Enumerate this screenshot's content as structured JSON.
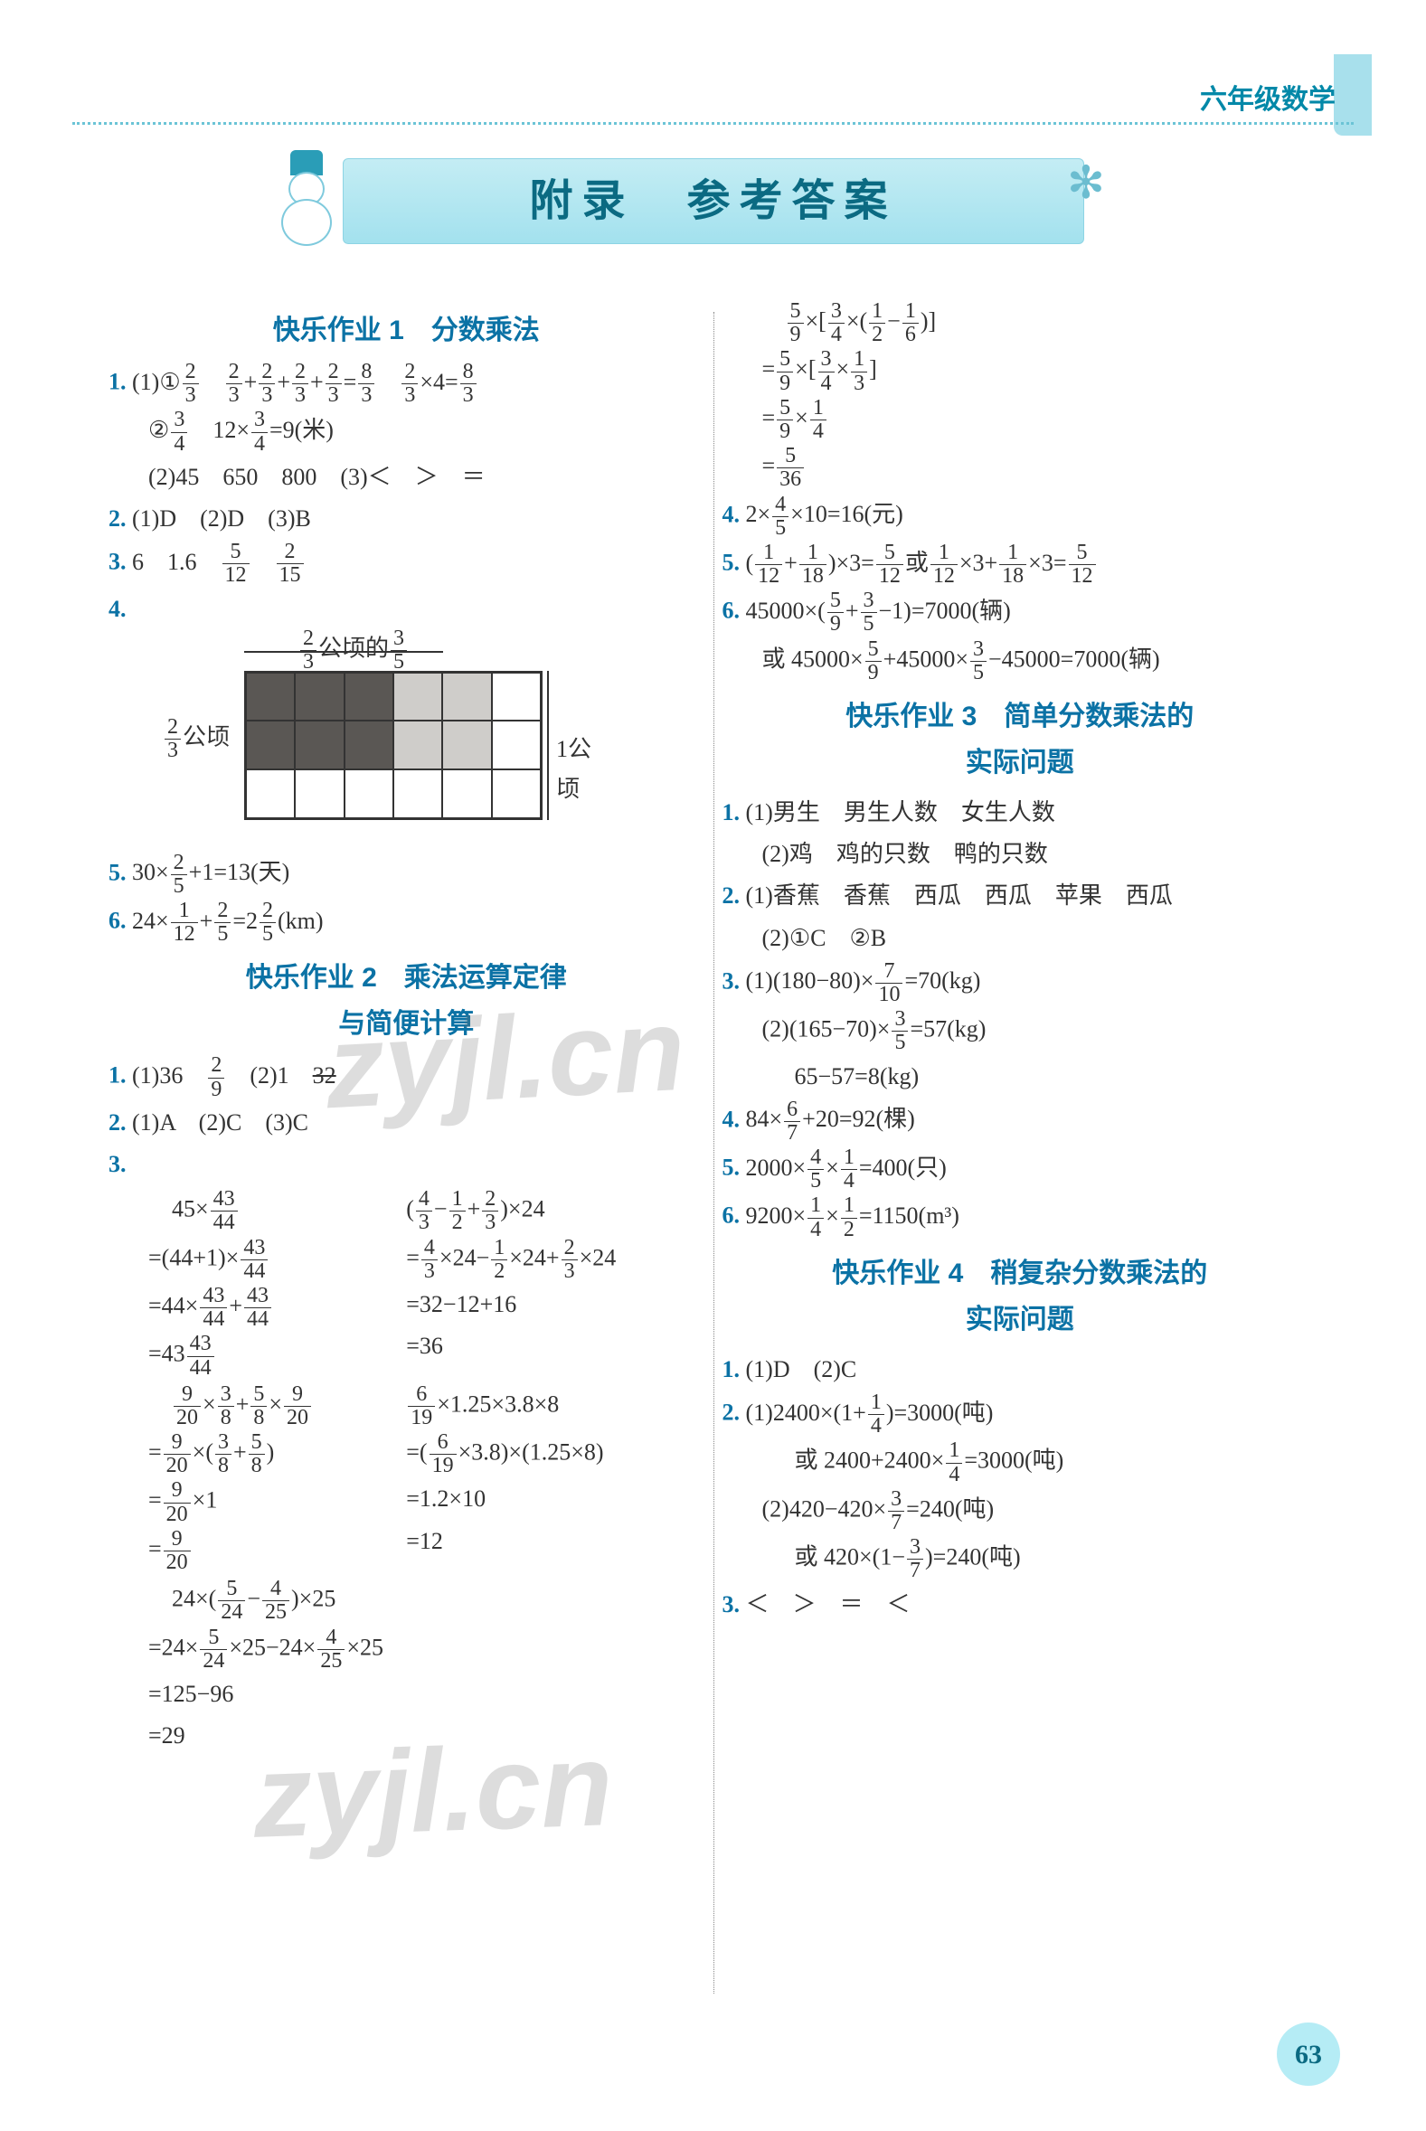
{
  "header": {
    "grade_subject": "六年级数学"
  },
  "banner": {
    "title": "附录　参考答案"
  },
  "watermark": "zyjl.cn",
  "page_number": "63",
  "diagram": {
    "left_label_html": "<span class='frac'><span class='n'>2</span><span class='d'>3</span></span>公顷",
    "top_label_html": "<span class='frac'><span class='n'>2</span><span class='d'>3</span></span>公顷的<span class='frac'><span class='n'>3</span><span class='d'>5</span></span>",
    "right_label": "1公顷",
    "rows": 3,
    "cols": 6,
    "colors": {
      "dark": "#5a5754",
      "light": "#cfcdca",
      "white": "#ffffff",
      "border": "#333333"
    },
    "cells": [
      [
        "dark",
        "dark",
        "dark",
        "light",
        "light",
        "white"
      ],
      [
        "dark",
        "dark",
        "dark",
        "light",
        "light",
        "white"
      ],
      [
        "white",
        "white",
        "white",
        "white",
        "white",
        "white"
      ]
    ]
  },
  "sections": {
    "s1": {
      "title": "快乐作业 1　分数乘法"
    },
    "s2": {
      "title": "快乐作业 2　乘法运算定律与简便计算",
      "title_l1": "快乐作业 2　乘法运算定律",
      "title_l2": "与简便计算"
    },
    "s3": {
      "title_l1": "快乐作业 3　简单分数乘法的",
      "title_l2": "实际问题"
    },
    "s4": {
      "title_l1": "快乐作业 4　稍复杂分数乘法的",
      "title_l2": "实际问题"
    }
  },
  "left": {
    "q1_1a_html": "(1)①<span class='frac'><span class='n'>2</span><span class='d'>3</span></span>　<span class='frac'><span class='n'>2</span><span class='d'>3</span></span>+<span class='frac'><span class='n'>2</span><span class='d'>3</span></span>+<span class='frac'><span class='n'>2</span><span class='d'>3</span></span>+<span class='frac'><span class='n'>2</span><span class='d'>3</span></span>=<span class='frac'><span class='n'>8</span><span class='d'>3</span></span>　<span class='frac'><span class='n'>2</span><span class='d'>3</span></span>×4=<span class='frac'><span class='n'>8</span><span class='d'>3</span></span>",
    "q1_1b_html": "②<span class='frac'><span class='n'>3</span><span class='d'>4</span></span>　12×<span class='frac'><span class='n'>3</span><span class='d'>4</span></span>=9(米)",
    "q1_2": "(2)45　650　800　(3)＜　＞　＝",
    "q2": "(1)D　(2)D　(3)B",
    "q3_html": "6　1.6　<span class='frac'><span class='n'>5</span><span class='d'>12</span></span>　<span class='frac'><span class='n'>2</span><span class='d'>15</span></span>",
    "q5_html": "30×<span class='frac'><span class='n'>2</span><span class='d'>5</span></span>+1=13(天)",
    "q6_html": "24×<span class='frac'><span class='n'>1</span><span class='d'>12</span></span>+<span class='frac'><span class='n'>2</span><span class='d'>5</span></span>=2<span class='frac'><span class='n'>2</span><span class='d'>5</span></span>(km)",
    "s2_q1_html": "(1)36　<span class='frac'><span class='n'>2</span><span class='d'>9</span></span>　(2)1　<span style='text-decoration:line-through'>32</span>",
    "s2_q2": "(1)A　(2)C　(3)C",
    "s2_q3a_1_html": "　45×<span class='frac'><span class='n'>43</span><span class='d'>44</span></span>",
    "s2_q3a_2_html": "=(44+1)×<span class='frac'><span class='n'>43</span><span class='d'>44</span></span>",
    "s2_q3a_3_html": "=44×<span class='frac'><span class='n'>43</span><span class='d'>44</span></span>+<span class='frac'><span class='n'>43</span><span class='d'>44</span></span>",
    "s2_q3a_4_html": "=43<span class='frac'><span class='n'>43</span><span class='d'>44</span></span>",
    "s2_q3b_1_html": "(<span class='frac'><span class='n'>4</span><span class='d'>3</span></span>−<span class='frac'><span class='n'>1</span><span class='d'>2</span></span>+<span class='frac'><span class='n'>2</span><span class='d'>3</span></span>)×24",
    "s2_q3b_2_html": "=<span class='frac'><span class='n'>4</span><span class='d'>3</span></span>×24−<span class='frac'><span class='n'>1</span><span class='d'>2</span></span>×24+<span class='frac'><span class='n'>2</span><span class='d'>3</span></span>×24",
    "s2_q3b_3": "=32−12+16",
    "s2_q3b_4": "=36",
    "s2_q3c_1_html": "　<span class='frac'><span class='n'>9</span><span class='d'>20</span></span>×<span class='frac'><span class='n'>3</span><span class='d'>8</span></span>+<span class='frac'><span class='n'>5</span><span class='d'>8</span></span>×<span class='frac'><span class='n'>9</span><span class='d'>20</span></span>",
    "s2_q3c_2_html": "=<span class='frac'><span class='n'>9</span><span class='d'>20</span></span>×(<span class='frac'><span class='n'>3</span><span class='d'>8</span></span>+<span class='frac'><span class='n'>5</span><span class='d'>8</span></span>)",
    "s2_q3c_3_html": "=<span class='frac'><span class='n'>9</span><span class='d'>20</span></span>×1",
    "s2_q3c_4_html": "=<span class='frac'><span class='n'>9</span><span class='d'>20</span></span>",
    "s2_q3d_1_html": "<span class='frac'><span class='n'>6</span><span class='d'>19</span></span>×1.25×3.8×8",
    "s2_q3d_2_html": "=(<span class='frac'><span class='n'>6</span><span class='d'>19</span></span>×3.8)×(1.25×8)",
    "s2_q3d_3": "=1.2×10",
    "s2_q3d_4": "=12",
    "s2_q3e_1_html": "　24×(<span class='frac'><span class='n'>5</span><span class='d'>24</span></span>−<span class='frac'><span class='n'>4</span><span class='d'>25</span></span>)×25",
    "s2_q3e_2_html": "=24×<span class='frac'><span class='n'>5</span><span class='d'>24</span></span>×25−24×<span class='frac'><span class='n'>4</span><span class='d'>25</span></span>×25",
    "s2_q3e_3": "=125−96",
    "s2_q3e_4": "=29"
  },
  "right": {
    "cont_1_html": "　<span class='frac'><span class='n'>5</span><span class='d'>9</span></span>×[<span class='frac'><span class='n'>3</span><span class='d'>4</span></span>×(<span class='frac'><span class='n'>1</span><span class='d'>2</span></span>−<span class='frac'><span class='n'>1</span><span class='d'>6</span></span>)]",
    "cont_2_html": "=<span class='frac'><span class='n'>5</span><span class='d'>9</span></span>×[<span class='frac'><span class='n'>3</span><span class='d'>4</span></span>×<span class='frac'><span class='n'>1</span><span class='d'>3</span></span>]",
    "cont_3_html": "=<span class='frac'><span class='n'>5</span><span class='d'>9</span></span>×<span class='frac'><span class='n'>1</span><span class='d'>4</span></span>",
    "cont_4_html": "=<span class='frac'><span class='n'>5</span><span class='d'>36</span></span>",
    "q4_html": "2×<span class='frac'><span class='n'>4</span><span class='d'>5</span></span>×10=16(元)",
    "q5_html": "(<span class='frac'><span class='n'>1</span><span class='d'>12</span></span>+<span class='frac'><span class='n'>1</span><span class='d'>18</span></span>)×3=<span class='frac'><span class='n'>5</span><span class='d'>12</span></span>或<span class='frac'><span class='n'>1</span><span class='d'>12</span></span>×3+<span class='frac'><span class='n'>1</span><span class='d'>18</span></span>×3=<span class='frac'><span class='n'>5</span><span class='d'>12</span></span>",
    "q6a_html": "45000×(<span class='frac'><span class='n'>5</span><span class='d'>9</span></span>+<span class='frac'><span class='n'>3</span><span class='d'>5</span></span>−1)=7000(辆)",
    "q6b_html": "或 45000×<span class='frac'><span class='n'>5</span><span class='d'>9</span></span>+45000×<span class='frac'><span class='n'>3</span><span class='d'>5</span></span>−45000=7000(辆)",
    "s3_q1a": "(1)男生　男生人数　女生人数",
    "s3_q1b": "(2)鸡　鸡的只数　鸭的只数",
    "s3_q2a": "(1)香蕉　香蕉　西瓜　西瓜　苹果　西瓜",
    "s3_q2b": "(2)①C　②B",
    "s3_q3a_html": "(1)(180−80)×<span class='frac'><span class='n'>7</span><span class='d'>10</span></span>=70(kg)",
    "s3_q3b_html": "(2)(165−70)×<span class='frac'><span class='n'>3</span><span class='d'>5</span></span>=57(kg)",
    "s3_q3c": "65−57=8(kg)",
    "s3_q4_html": "84×<span class='frac'><span class='n'>6</span><span class='d'>7</span></span>+20=92(棵)",
    "s3_q5_html": "2000×<span class='frac'><span class='n'>4</span><span class='d'>5</span></span>×<span class='frac'><span class='n'>1</span><span class='d'>4</span></span>=400(只)",
    "s3_q6_html": "9200×<span class='frac'><span class='n'>1</span><span class='d'>4</span></span>×<span class='frac'><span class='n'>1</span><span class='d'>2</span></span>=1150(m³)",
    "s4_q1": "(1)D　(2)C",
    "s4_q2a_html": "(1)2400×(1+<span class='frac'><span class='n'>1</span><span class='d'>4</span></span>)=3000(吨)",
    "s4_q2b_html": "或 2400+2400×<span class='frac'><span class='n'>1</span><span class='d'>4</span></span>=3000(吨)",
    "s4_q2c_html": "(2)420−420×<span class='frac'><span class='n'>3</span><span class='d'>7</span></span>=240(吨)",
    "s4_q2d_html": "或 420×(1−<span class='frac'><span class='n'>3</span><span class='d'>7</span></span>)=240(吨)",
    "s4_q3": "＜　＞　＝　＜"
  }
}
